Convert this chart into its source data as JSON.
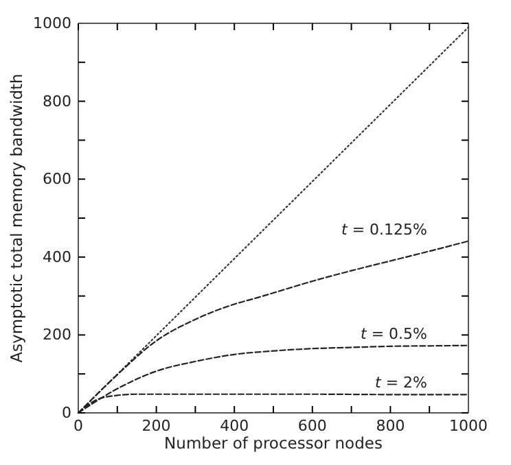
{
  "chart_data": {
    "type": "line",
    "xlabel": "Number of processor nodes",
    "ylabel": "Asymptotic total memory bandwidth",
    "xlim": [
      0,
      1000
    ],
    "ylim": [
      0,
      1000
    ],
    "xticks": [
      0,
      {
        "value": 100,
        "label": null
      },
      200,
      {
        "value": 300,
        "label": null
      },
      400,
      {
        "value": 500,
        "label": null
      },
      600,
      {
        "value": 700,
        "label": null
      },
      800,
      {
        "value": 900,
        "label": null
      },
      1000
    ],
    "yticks": [
      0,
      {
        "value": 100,
        "label": null
      },
      200,
      {
        "value": 300,
        "label": null
      },
      400,
      {
        "value": 500,
        "label": null
      },
      600,
      {
        "value": 700,
        "label": null
      },
      800,
      {
        "value": 900,
        "label": null
      },
      1000
    ],
    "grid": false,
    "marker": "none",
    "series": [
      {
        "color": "#333333",
        "line_style": "dotted",
        "x": [
          0,
          1000
        ],
        "values": [
          0,
          990
        ]
      },
      {
        "name": "t = 0.125%",
        "color": "#222222",
        "line_style": "dashed",
        "x": [
          0,
          100,
          200,
          300,
          400,
          460,
          500,
          600,
          700,
          800,
          900,
          1000
        ],
        "values": [
          0,
          98,
          185,
          240,
          279,
          296,
          308,
          338,
          365,
          390,
          415,
          441
        ]
      },
      {
        "name": "t = 0.5%",
        "color": "#222222",
        "line_style": "dashed",
        "x": [
          0,
          100,
          200,
          300,
          400,
          500,
          600,
          700,
          800,
          900,
          1000
        ],
        "values": [
          0,
          62,
          107,
          132,
          150,
          159,
          165,
          168,
          171,
          172,
          173
        ]
      },
      {
        "name": "t = 2%",
        "color": "#222222",
        "line_style": "dashed",
        "x": [
          0,
          50,
          100,
          150,
          200,
          400,
          600,
          800,
          1000
        ],
        "values": [
          0,
          35,
          45,
          48,
          48,
          48,
          48,
          47,
          47
        ]
      }
    ]
  }
}
